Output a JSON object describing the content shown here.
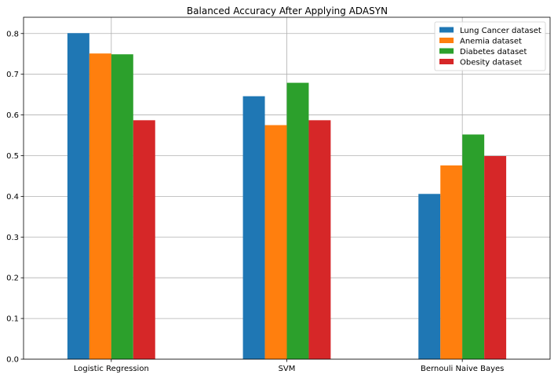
{
  "chart_data": {
    "type": "bar",
    "title": "Balanced Accuracy After Applying ADASYN",
    "xlabel": "",
    "ylabel": "",
    "categories": [
      "Logistic Regression",
      "SVM",
      "Bernouli Naive Bayes"
    ],
    "series": [
      {
        "name": "Lung Cancer dataset",
        "color": "#1f77b4",
        "values": [
          0.801,
          0.646,
          0.406
        ]
      },
      {
        "name": "Anemia dataset",
        "color": "#ff7f0e",
        "values": [
          0.751,
          0.575,
          0.476
        ]
      },
      {
        "name": "Diabetes dataset",
        "color": "#2ca02c",
        "values": [
          0.749,
          0.679,
          0.552
        ]
      },
      {
        "name": "Obesity dataset",
        "color": "#d62728",
        "values": [
          0.587,
          0.587,
          0.499
        ]
      }
    ],
    "ylim": [
      0,
      0.84
    ],
    "yticks": [
      "0.0",
      "0.1",
      "0.2",
      "0.3",
      "0.4",
      "0.5",
      "0.6",
      "0.7",
      "0.8"
    ],
    "grid": true,
    "legend_position": "top-right"
  }
}
